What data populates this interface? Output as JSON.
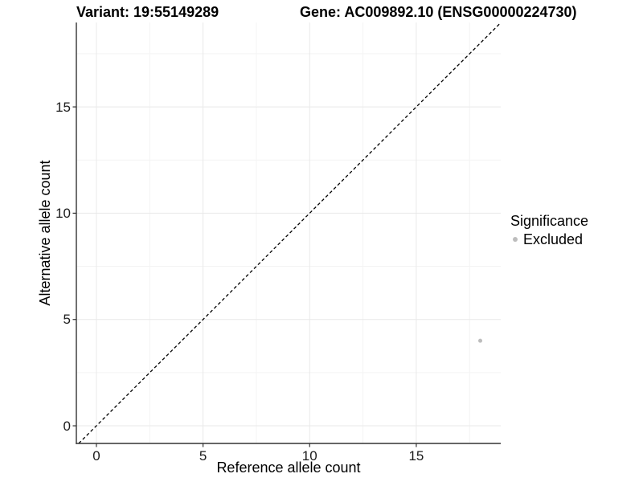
{
  "header": {
    "variant_title": "Variant: 19:55149289",
    "gene_title": "Gene: AC009892.10 (ENSG00000224730)"
  },
  "legend": {
    "title": "Significance",
    "items": [
      {
        "label": "Excluded",
        "marker": "circle",
        "color": "#bdbdbd"
      }
    ]
  },
  "chart_data": {
    "type": "scatter",
    "title": "Variant: 19:55149289 — Gene: AC009892.10 (ENSG00000224730)",
    "xlabel": "Reference allele count",
    "ylabel": "Alternative allele count",
    "xlim": [
      -0.94,
      18.96
    ],
    "ylim": [
      -0.83,
      18.97
    ],
    "x_ticks": [
      0,
      5,
      10,
      15
    ],
    "y_ticks": [
      0,
      5,
      10,
      15
    ],
    "x_minor_ticks": [
      2.5,
      7.5,
      12.5,
      17.5
    ],
    "y_minor_ticks": [
      2.5,
      7.5,
      12.5,
      17.5
    ],
    "grid": {
      "on": true,
      "major_color": "#e9e9e9",
      "minor_color": "#f4f4f4"
    },
    "axis_line_color": "#333333",
    "reference_line": {
      "equation": "y = x",
      "style": "dashed",
      "color": "#000000"
    },
    "series": [
      {
        "name": "Excluded",
        "color": "#bdbdbd",
        "point_radius_px": 2.5,
        "points": [
          {
            "x": 18,
            "y": 4
          }
        ]
      }
    ],
    "legend_position": "right"
  }
}
